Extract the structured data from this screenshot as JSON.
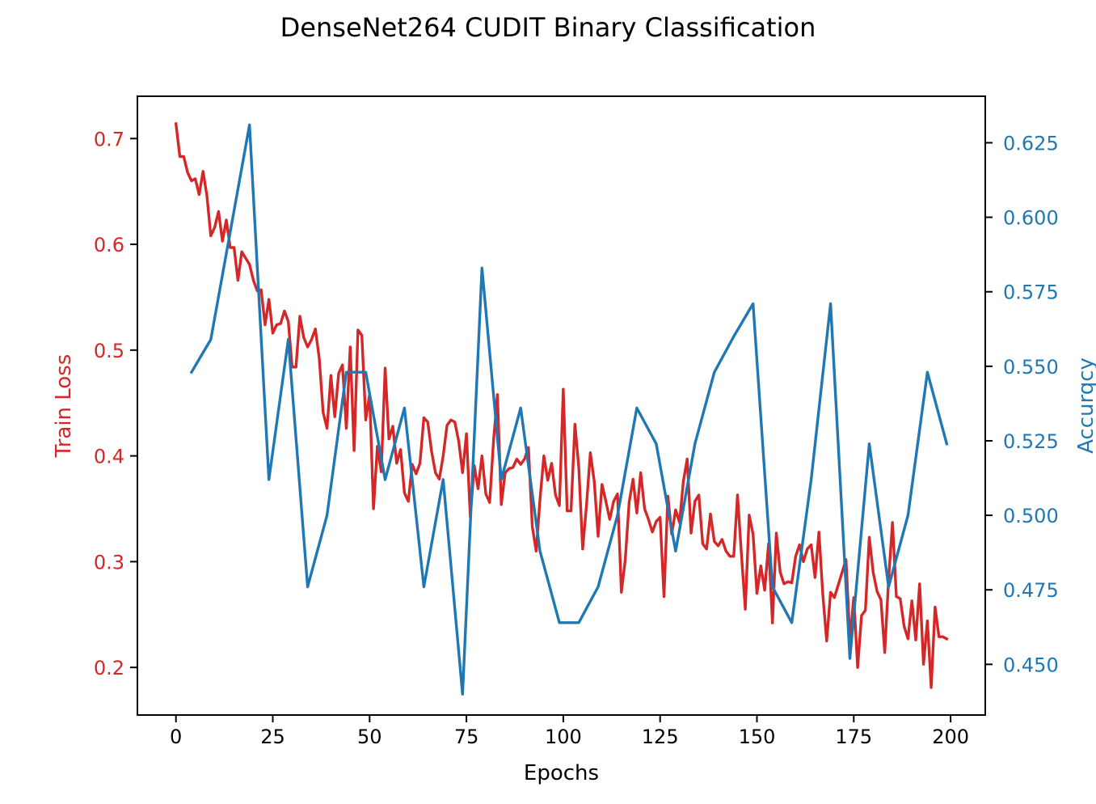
{
  "chart_data": {
    "type": "line",
    "title": "DenseNet264 CUDIT Binary Classification",
    "xlabel": "Epochs",
    "ylabel_left": "Train Loss",
    "ylabel_right": "Accurqcy",
    "xlim": [
      -9.95,
      208.95
    ],
    "ylim_left": [
      0.155,
      0.74
    ],
    "ylim_right": [
      0.433,
      0.6406
    ],
    "x_ticks": [
      0,
      25,
      50,
      75,
      100,
      125,
      150,
      175,
      200
    ],
    "y_ticks_left": [
      0.2,
      0.3,
      0.4,
      0.5,
      0.6,
      0.7
    ],
    "y_ticks_right": [
      0.45,
      0.475,
      0.5,
      0.525,
      0.55,
      0.575,
      0.6,
      0.625
    ],
    "grid": false,
    "colors": {
      "loss": "#d62728",
      "accuracy": "#1f77b4"
    },
    "series": [
      {
        "axis": "left",
        "x": [
          0,
          1,
          2,
          3,
          4,
          5,
          6,
          7,
          8,
          9,
          10,
          11,
          12,
          13,
          14,
          15,
          16,
          17,
          18,
          19,
          20,
          21,
          22,
          23,
          24,
          25,
          26,
          27,
          28,
          29,
          30,
          31,
          32,
          33,
          34,
          35,
          36,
          37,
          38,
          39,
          40,
          41,
          42,
          43,
          44,
          45,
          46,
          47,
          48,
          49,
          50,
          51,
          52,
          53,
          54,
          55,
          56,
          57,
          58,
          59,
          60,
          61,
          62,
          63,
          64,
          65,
          66,
          67,
          68,
          69,
          70,
          71,
          72,
          73,
          74,
          75,
          76,
          77,
          78,
          79,
          80,
          81,
          82,
          83,
          84,
          85,
          86,
          87,
          88,
          89,
          90,
          91,
          92,
          93,
          94,
          95,
          96,
          97,
          98,
          99,
          100,
          101,
          102,
          103,
          104,
          105,
          106,
          107,
          108,
          109,
          110,
          111,
          112,
          113,
          114,
          115,
          116,
          117,
          118,
          119,
          120,
          121,
          122,
          123,
          124,
          125,
          126,
          127,
          128,
          129,
          130,
          131,
          132,
          133,
          134,
          135,
          136,
          137,
          138,
          139,
          140,
          141,
          142,
          143,
          144,
          145,
          146,
          147,
          148,
          149,
          150,
          151,
          152,
          153,
          154,
          155,
          156,
          157,
          158,
          159,
          160,
          161,
          162,
          163,
          164,
          165,
          166,
          167,
          168,
          169,
          170,
          171,
          172,
          173,
          174,
          175,
          176,
          177,
          178,
          179,
          180,
          181,
          182,
          183,
          184,
          185,
          186,
          187,
          188,
          189,
          190,
          191,
          192,
          193,
          194,
          195,
          196,
          197,
          198,
          199
        ],
        "values": [
          0.714,
          0.683,
          0.683,
          0.668,
          0.66,
          0.662,
          0.647,
          0.669,
          0.646,
          0.608,
          0.616,
          0.631,
          0.603,
          0.623,
          0.597,
          0.597,
          0.566,
          0.593,
          0.587,
          0.581,
          0.566,
          0.556,
          0.557,
          0.524,
          0.548,
          0.516,
          0.524,
          0.525,
          0.537,
          0.527,
          0.484,
          0.484,
          0.532,
          0.512,
          0.503,
          0.51,
          0.52,
          0.492,
          0.441,
          0.426,
          0.476,
          0.437,
          0.478,
          0.486,
          0.426,
          0.503,
          0.405,
          0.519,
          0.514,
          0.434,
          0.458,
          0.35,
          0.409,
          0.385,
          0.483,
          0.416,
          0.428,
          0.393,
          0.406,
          0.365,
          0.357,
          0.392,
          0.383,
          0.393,
          0.436,
          0.432,
          0.404,
          0.384,
          0.378,
          0.4,
          0.429,
          0.434,
          0.432,
          0.414,
          0.384,
          0.421,
          0.342,
          0.391,
          0.369,
          0.4,
          0.364,
          0.356,
          0.414,
          0.458,
          0.354,
          0.384,
          0.388,
          0.389,
          0.397,
          0.392,
          0.397,
          0.408,
          0.333,
          0.31,
          0.359,
          0.4,
          0.377,
          0.393,
          0.363,
          0.353,
          0.463,
          0.348,
          0.348,
          0.43,
          0.389,
          0.312,
          0.353,
          0.403,
          0.376,
          0.324,
          0.373,
          0.357,
          0.34,
          0.357,
          0.364,
          0.271,
          0.302,
          0.356,
          0.378,
          0.346,
          0.384,
          0.35,
          0.34,
          0.328,
          0.338,
          0.342,
          0.267,
          0.362,
          0.326,
          0.349,
          0.337,
          0.376,
          0.397,
          0.327,
          0.357,
          0.363,
          0.317,
          0.312,
          0.345,
          0.319,
          0.315,
          0.321,
          0.31,
          0.305,
          0.305,
          0.363,
          0.307,
          0.255,
          0.344,
          0.326,
          0.27,
          0.296,
          0.273,
          0.317,
          0.242,
          0.327,
          0.29,
          0.279,
          0.281,
          0.28,
          0.305,
          0.316,
          0.3,
          0.312,
          0.316,
          0.285,
          0.328,
          0.269,
          0.225,
          0.271,
          0.266,
          0.278,
          0.29,
          0.302,
          0.226,
          0.266,
          0.2,
          0.249,
          0.254,
          0.323,
          0.29,
          0.272,
          0.264,
          0.214,
          0.283,
          0.337,
          0.267,
          0.265,
          0.239,
          0.227,
          0.263,
          0.226,
          0.279,
          0.203,
          0.244,
          0.181,
          0.257,
          0.229,
          0.229,
          0.227
        ]
      },
      {
        "axis": "right",
        "x": [
          4,
          9,
          14,
          19,
          24,
          29,
          34,
          39,
          44,
          49,
          54,
          59,
          64,
          69,
          74,
          79,
          84,
          89,
          94,
          99,
          104,
          109,
          114,
          119,
          124,
          129,
          134,
          139,
          144,
          149,
          154,
          159,
          164,
          169,
          174,
          179,
          184,
          189,
          194,
          199
        ],
        "values": [
          0.548,
          0.559,
          0.595,
          0.631,
          0.512,
          0.559,
          0.476,
          0.5,
          0.548,
          0.548,
          0.512,
          0.536,
          0.476,
          0.512,
          0.44,
          0.583,
          0.512,
          0.536,
          0.488,
          0.464,
          0.464,
          0.476,
          0.5,
          0.536,
          0.524,
          0.488,
          0.524,
          0.548,
          0.56,
          0.571,
          0.476,
          0.464,
          0.512,
          0.571,
          0.452,
          0.524,
          0.476,
          0.5,
          0.548,
          0.524
        ]
      }
    ]
  }
}
